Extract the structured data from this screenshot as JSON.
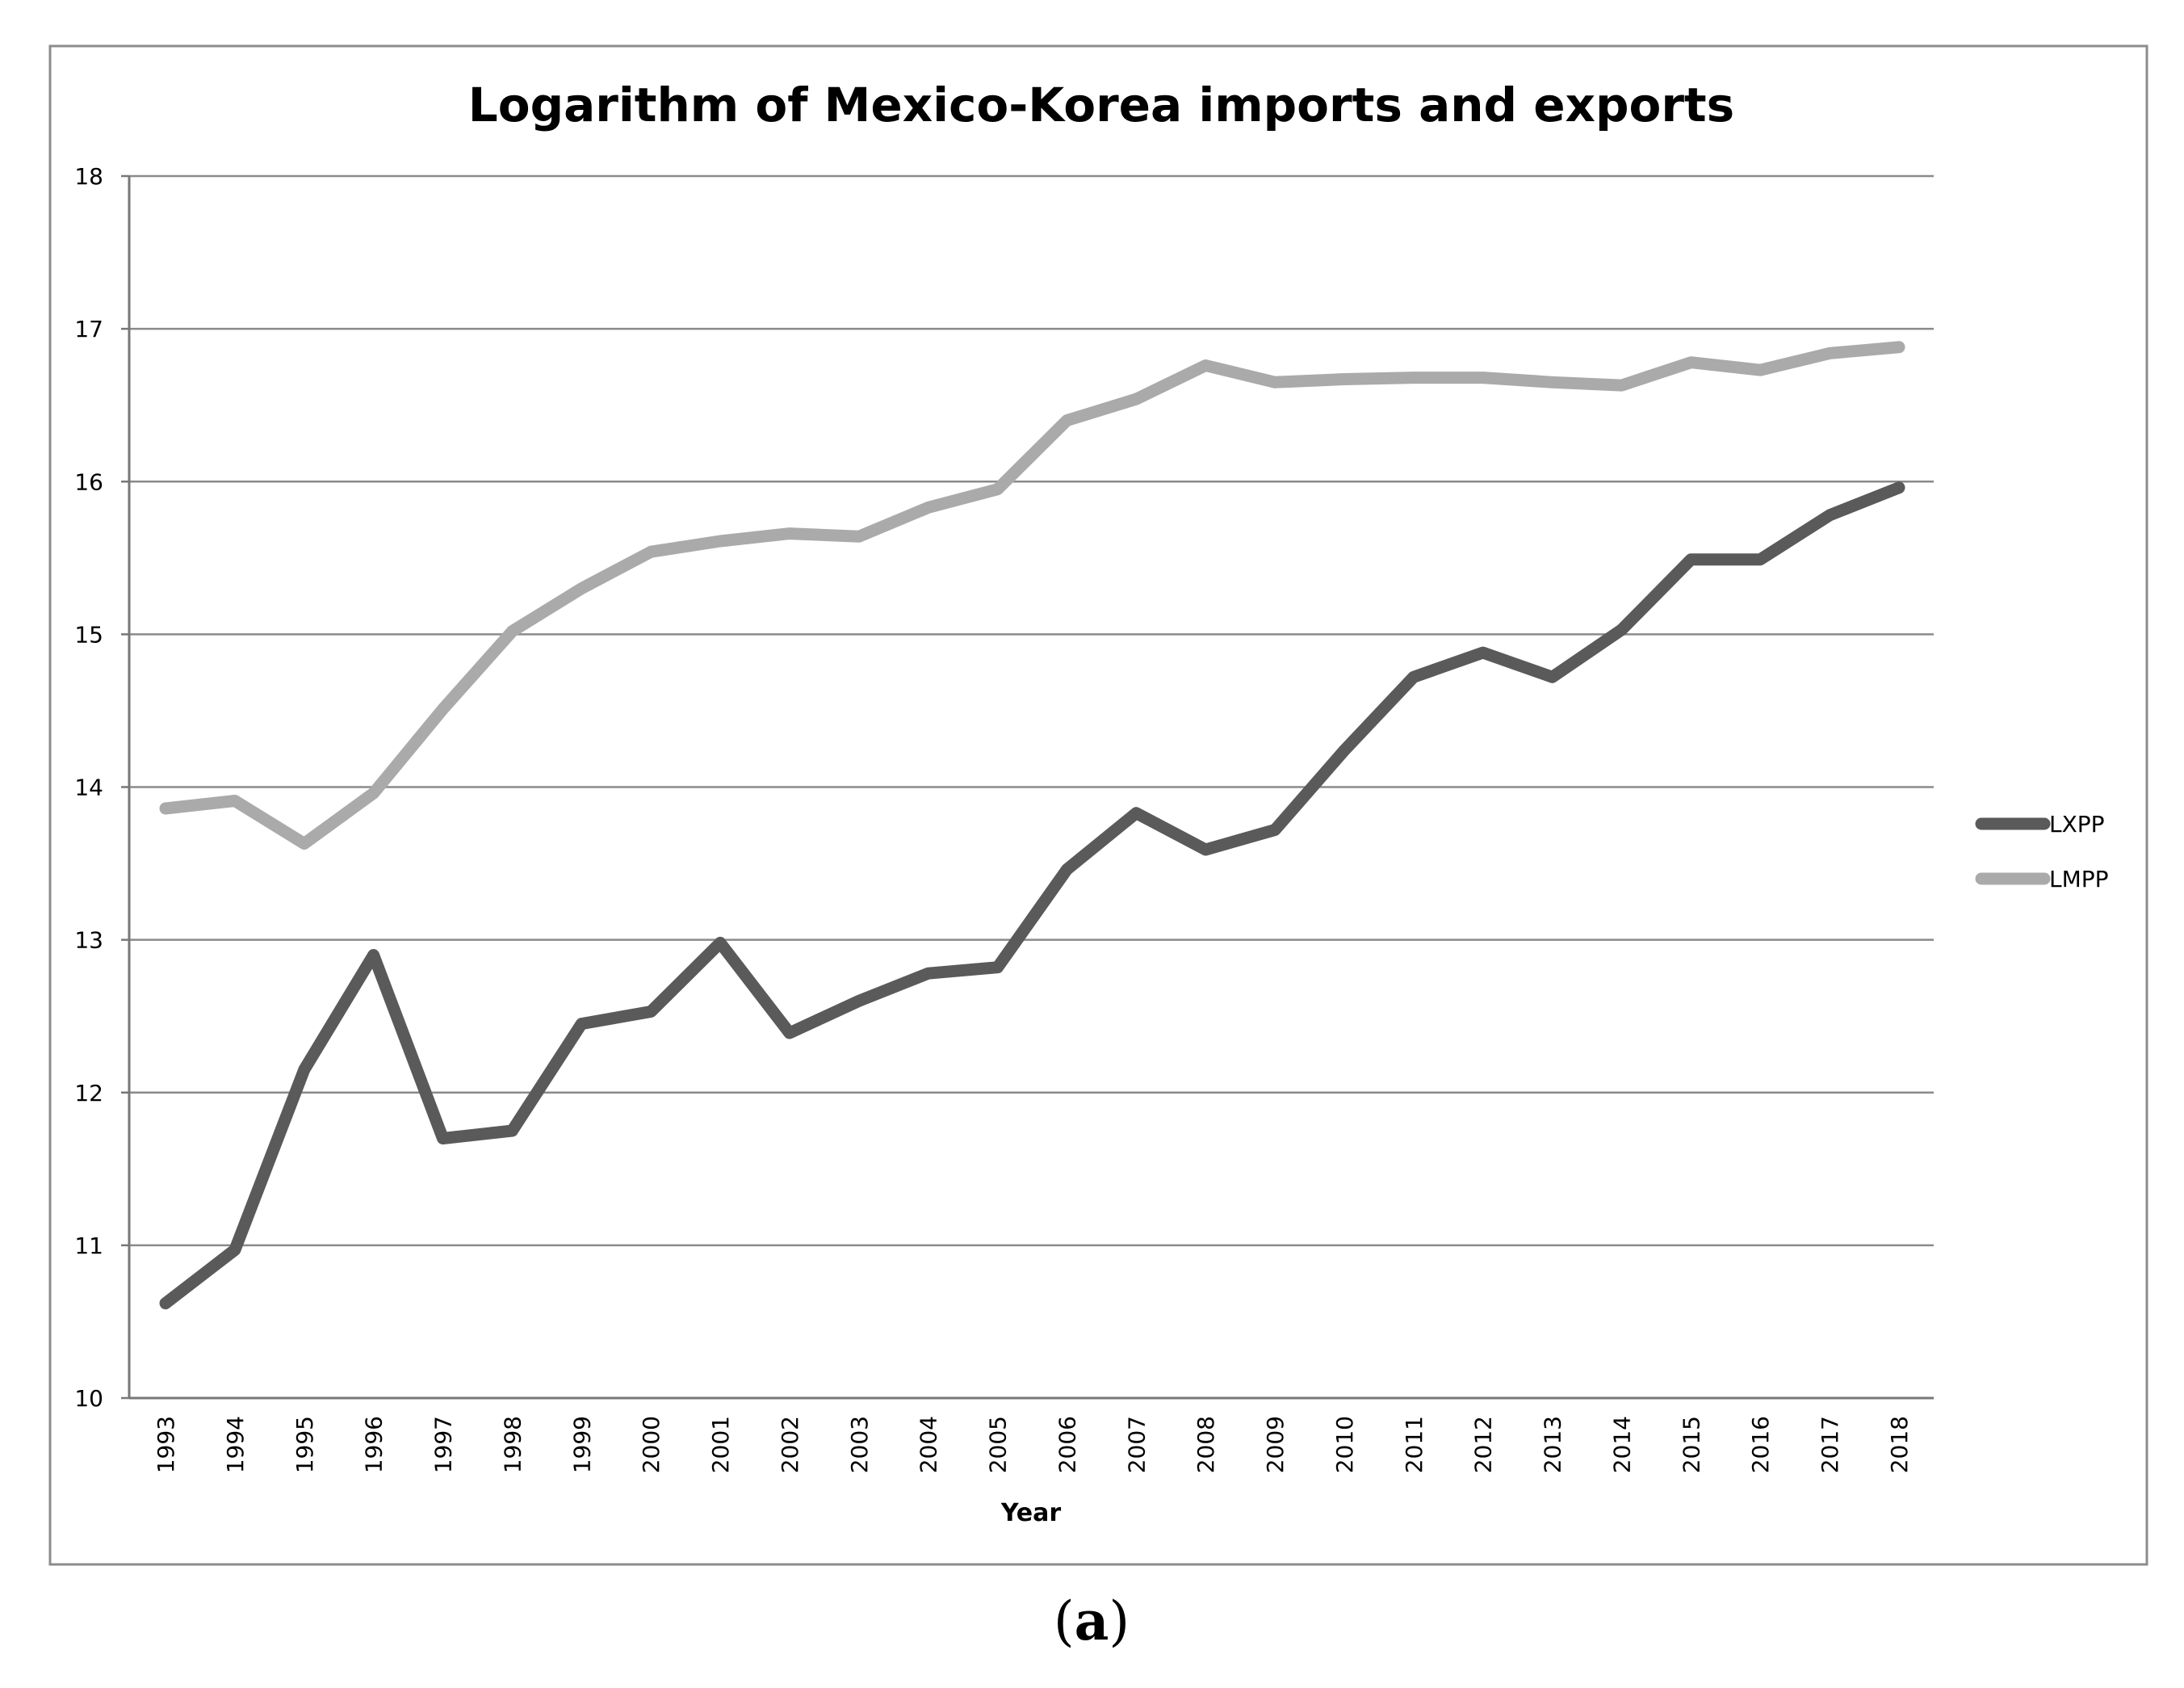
{
  "chart_data": {
    "type": "line",
    "title": "Logarithm of Mexico-Korea imports and exports",
    "xlabel": "Year",
    "ylabel": "",
    "ylim": [
      10,
      18
    ],
    "yticks": [
      "10",
      "11",
      "12",
      "13",
      "14",
      "15",
      "16",
      "17",
      "18"
    ],
    "x": [
      "1993",
      "1994",
      "1995",
      "1996",
      "1997",
      "1998",
      "1999",
      "2000",
      "2001",
      "2002",
      "2003",
      "2004",
      "2005",
      "2006",
      "2007",
      "2008",
      "2009",
      "2010",
      "2011",
      "2012",
      "2013",
      "2014",
      "2015",
      "2016",
      "2017",
      "2018"
    ],
    "grid": true,
    "legend_position": "right",
    "series": [
      {
        "name": "LXPP",
        "color": "#5a5a5a",
        "values": [
          10.62,
          10.97,
          12.15,
          12.9,
          11.7,
          11.75,
          12.45,
          12.53,
          12.98,
          12.39,
          12.6,
          12.78,
          12.82,
          13.46,
          13.83,
          13.59,
          13.72,
          14.24,
          14.72,
          14.88,
          14.72,
          15.03,
          15.49,
          15.49,
          15.78,
          15.96
        ]
      },
      {
        "name": "LMPP",
        "color": "#aaaaaa",
        "values": [
          13.86,
          13.91,
          13.63,
          13.96,
          14.51,
          15.02,
          15.3,
          15.54,
          15.61,
          15.66,
          15.64,
          15.83,
          15.95,
          16.4,
          16.54,
          16.76,
          16.65,
          16.67,
          16.68,
          16.68,
          16.65,
          16.63,
          16.78,
          16.73,
          16.84,
          16.88
        ]
      }
    ]
  },
  "caption": {
    "open": "(",
    "letter": "a",
    "close": ")"
  }
}
